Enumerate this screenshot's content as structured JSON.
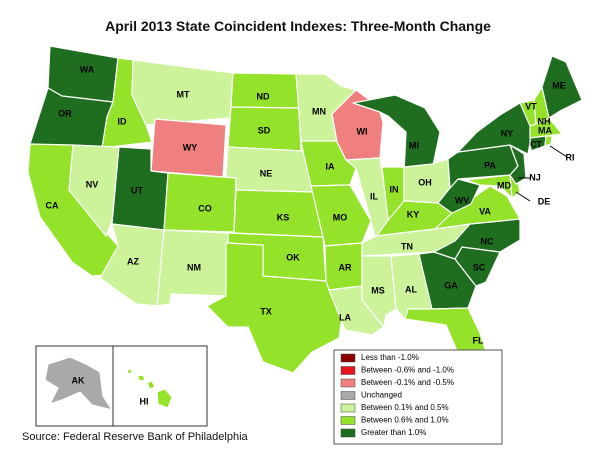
{
  "title": "April 2013 State Coincident Indexes: Three-Month Change",
  "source": "Source: Federal Reserve Bank of Philadelphia",
  "colors": {
    "lt_neg1": "#8b0000",
    "neg06_neg1": "#e8141e",
    "neg01_neg05": "#f08080",
    "unchanged": "#a9a9a9",
    "p01_p05": "#ccf29a",
    "p06_p1": "#95e22a",
    "gt1": "#1f6e1f"
  },
  "legend": [
    {
      "key": "lt_neg1",
      "label": "Less than -1.0%"
    },
    {
      "key": "neg06_neg1",
      "label": "Between -0.6% and -1.0%"
    },
    {
      "key": "neg01_neg05",
      "label": "Between -0.1% and -0.5%"
    },
    {
      "key": "unchanged",
      "label": "Unchanged"
    },
    {
      "key": "p01_p05",
      "label": "Between 0.1% and 0.5%"
    },
    {
      "key": "p06_p1",
      "label": "Between 0.6% and 1.0%"
    },
    {
      "key": "gt1",
      "label": "Greater than 1.0%"
    }
  ],
  "states": [
    {
      "abbr": "WA",
      "category": "gt1"
    },
    {
      "abbr": "OR",
      "category": "gt1"
    },
    {
      "abbr": "CA",
      "category": "p06_p1"
    },
    {
      "abbr": "ID",
      "category": "p06_p1"
    },
    {
      "abbr": "NV",
      "category": "p01_p05"
    },
    {
      "abbr": "MT",
      "category": "p01_p05"
    },
    {
      "abbr": "WY",
      "category": "neg01_neg05"
    },
    {
      "abbr": "UT",
      "category": "gt1"
    },
    {
      "abbr": "AZ",
      "category": "p01_p05"
    },
    {
      "abbr": "CO",
      "category": "p06_p1"
    },
    {
      "abbr": "NM",
      "category": "p01_p05"
    },
    {
      "abbr": "ND",
      "category": "p06_p1"
    },
    {
      "abbr": "SD",
      "category": "p06_p1"
    },
    {
      "abbr": "NE",
      "category": "p01_p05"
    },
    {
      "abbr": "KS",
      "category": "p06_p1"
    },
    {
      "abbr": "OK",
      "category": "p06_p1"
    },
    {
      "abbr": "TX",
      "category": "p06_p1"
    },
    {
      "abbr": "MN",
      "category": "p01_p05"
    },
    {
      "abbr": "IA",
      "category": "p06_p1"
    },
    {
      "abbr": "MO",
      "category": "p06_p1"
    },
    {
      "abbr": "AR",
      "category": "p06_p1"
    },
    {
      "abbr": "LA",
      "category": "p01_p05"
    },
    {
      "abbr": "WI",
      "category": "neg01_neg05"
    },
    {
      "abbr": "IL",
      "category": "p01_p05"
    },
    {
      "abbr": "MI",
      "category": "gt1"
    },
    {
      "abbr": "IN",
      "category": "p06_p1"
    },
    {
      "abbr": "OH",
      "category": "p01_p05"
    },
    {
      "abbr": "KY",
      "category": "p06_p1"
    },
    {
      "abbr": "TN",
      "category": "p01_p05"
    },
    {
      "abbr": "MS",
      "category": "p01_p05"
    },
    {
      "abbr": "AL",
      "category": "p01_p05"
    },
    {
      "abbr": "GA",
      "category": "gt1"
    },
    {
      "abbr": "FL",
      "category": "p06_p1"
    },
    {
      "abbr": "SC",
      "category": "gt1"
    },
    {
      "abbr": "NC",
      "category": "gt1"
    },
    {
      "abbr": "VA",
      "category": "p06_p1"
    },
    {
      "abbr": "WV",
      "category": "gt1"
    },
    {
      "abbr": "PA",
      "category": "gt1"
    },
    {
      "abbr": "NY",
      "category": "gt1"
    },
    {
      "abbr": "NJ",
      "category": "gt1"
    },
    {
      "abbr": "DE",
      "category": "p06_p1"
    },
    {
      "abbr": "MD",
      "category": "p06_p1"
    },
    {
      "abbr": "VT",
      "category": "p06_p1"
    },
    {
      "abbr": "NH",
      "category": "p06_p1"
    },
    {
      "abbr": "ME",
      "category": "gt1"
    },
    {
      "abbr": "MA",
      "category": "p06_p1"
    },
    {
      "abbr": "CT",
      "category": "gt1"
    },
    {
      "abbr": "RI",
      "category": "p06_p1"
    },
    {
      "abbr": "AK",
      "category": "unchanged"
    },
    {
      "abbr": "HI",
      "category": "p06_p1"
    }
  ]
}
